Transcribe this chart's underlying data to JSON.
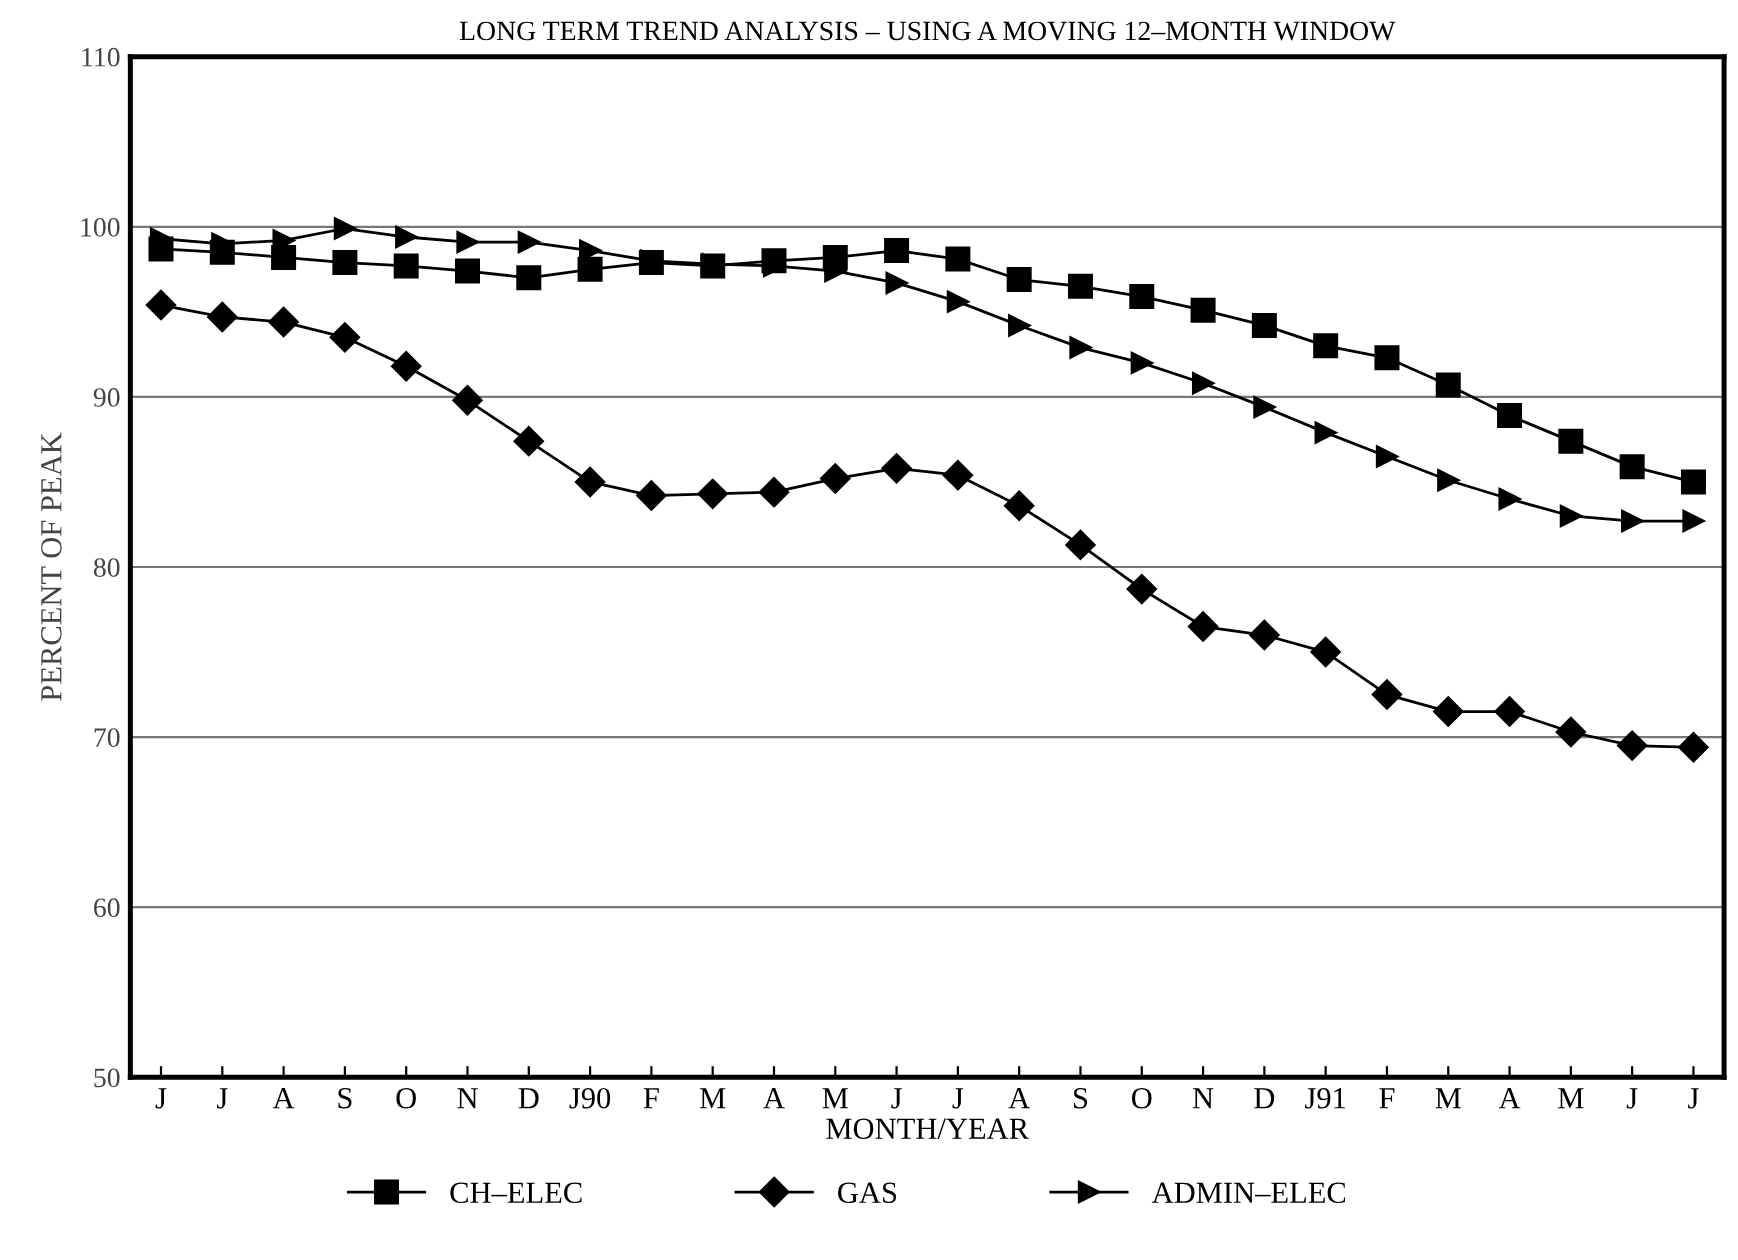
{
  "chart_data": {
    "type": "line",
    "title": "LONG TERM TREND ANALYSIS – USING A MOVING 12–MONTH WINDOW",
    "xlabel": "MONTH/YEAR",
    "ylabel": "PERCENT OF PEAK",
    "categories": [
      "J",
      "J",
      "A",
      "S",
      "O",
      "N",
      "D",
      "J90",
      "F",
      "M",
      "A",
      "M",
      "J",
      "J",
      "A",
      "S",
      "O",
      "N",
      "D",
      "J91",
      "F",
      "M",
      "A",
      "M",
      "J",
      "J"
    ],
    "series": [
      {
        "name": "CH–ELEC",
        "color": "#000000",
        "marker": "square",
        "values": [
          98.7,
          98.5,
          98.2,
          97.9,
          97.7,
          97.4,
          97.0,
          97.5,
          97.9,
          97.7,
          98.0,
          98.2,
          98.6,
          98.1,
          96.9,
          96.5,
          95.9,
          95.1,
          94.2,
          93.0,
          92.3,
          90.7,
          88.9,
          87.4,
          85.9,
          85.0
        ]
      },
      {
        "name": "GAS",
        "color": "#000000",
        "marker": "diamond",
        "values": [
          95.4,
          94.7,
          94.4,
          93.5,
          91.8,
          89.8,
          87.4,
          85.0,
          84.2,
          84.3,
          84.4,
          85.2,
          85.8,
          85.4,
          83.6,
          81.3,
          78.7,
          76.5,
          76.0,
          75.0,
          72.5,
          71.5,
          71.5,
          70.3,
          69.5,
          69.4
        ]
      },
      {
        "name": "ADMIN–ELEC",
        "color": "#000000",
        "marker": "triangle",
        "values": [
          99.3,
          99.0,
          99.2,
          99.9,
          99.4,
          99.1,
          99.1,
          98.6,
          98.0,
          97.8,
          97.7,
          97.4,
          96.7,
          95.6,
          94.2,
          92.9,
          92.0,
          90.8,
          89.4,
          87.9,
          86.5,
          85.1,
          84.0,
          83.0,
          82.7,
          82.7
        ]
      }
    ],
    "ylim": [
      50,
      110
    ],
    "yticks": [
      50,
      60,
      70,
      80,
      90,
      100,
      110
    ],
    "grid": "y",
    "legend": "bottom",
    "line_style": "solid"
  }
}
